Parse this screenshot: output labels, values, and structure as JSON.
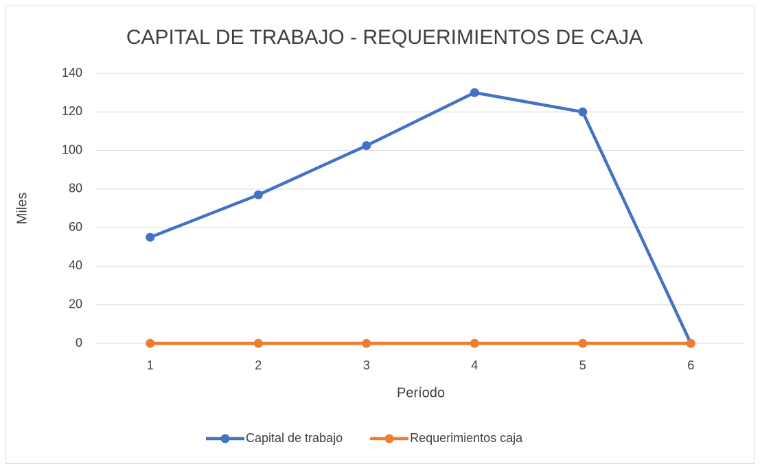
{
  "chart_data": {
    "type": "line",
    "title": "CAPITAL DE TRABAJO - REQUERIMIENTOS DE CAJA",
    "x_label": "Período",
    "y_label": "Miles",
    "categories": [
      "1",
      "2",
      "3",
      "4",
      "5",
      "6"
    ],
    "series": [
      {
        "name": "Capital de trabajo",
        "color": "#4472c4",
        "values": [
          55,
          77,
          102.5,
          130,
          120,
          0
        ]
      },
      {
        "name": "Requerimientos caja",
        "color": "#ed7d31",
        "values": [
          0,
          0,
          0,
          0,
          0,
          0
        ]
      }
    ],
    "ylim": [
      0,
      140
    ],
    "yticks": [
      0,
      20,
      40,
      60,
      80,
      100,
      120,
      140
    ],
    "grid": true,
    "legend": "bottom"
  }
}
